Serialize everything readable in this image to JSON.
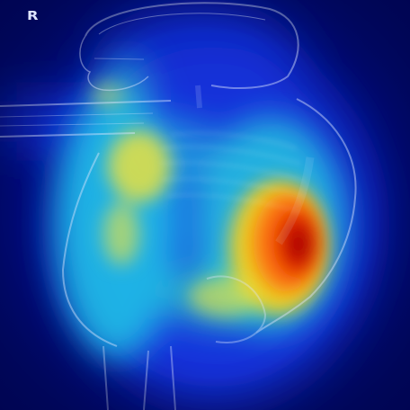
{
  "image": {
    "orientation_marker": "R",
    "overlay": {
      "type": "heatmap",
      "colormap": "jet",
      "colors": {
        "background": "#000a7a",
        "low": "#1a3cff",
        "mid": "#2ad4e6",
        "high": "#f0e040",
        "peak": "#b80000"
      }
    }
  }
}
